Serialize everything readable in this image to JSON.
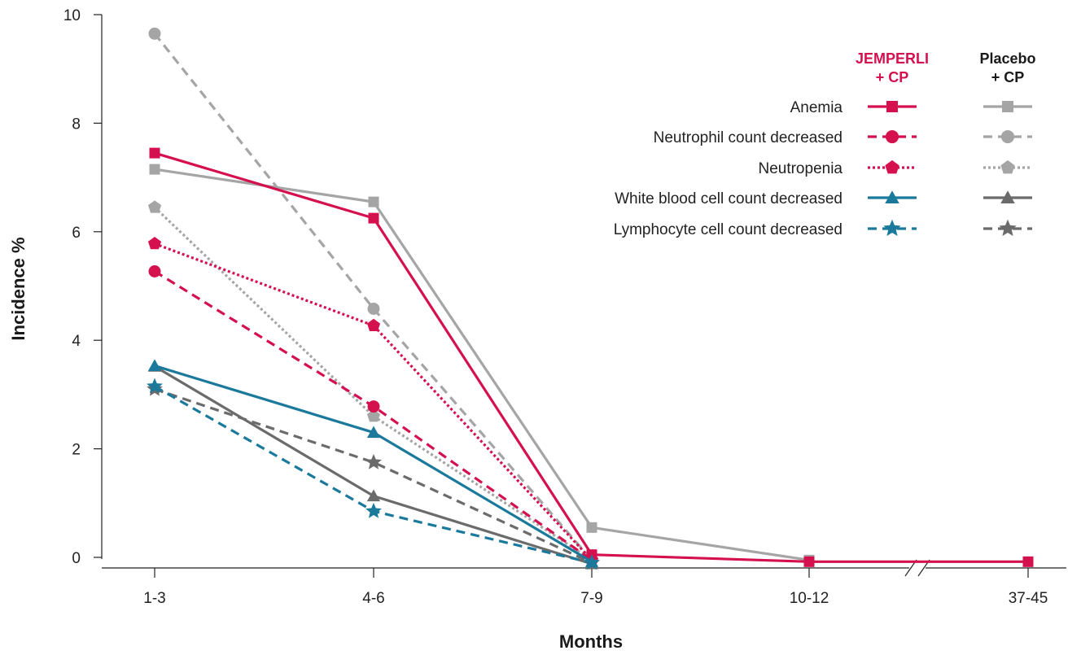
{
  "chart_data": {
    "type": "line",
    "xlabel": "Months",
    "ylabel": "Incidence %",
    "categories": [
      "1-3",
      "4-6",
      "7-9",
      "10-12",
      "37-45"
    ],
    "axis_break_between": [
      "10-12",
      "37-45"
    ],
    "ylim": [
      0,
      10
    ],
    "yticks": [
      "0",
      "2",
      "4",
      "6",
      "8",
      "10"
    ],
    "grid": false,
    "legend": {
      "placement": "top-right",
      "groups": [
        {
          "line1": "JEMPERLI",
          "line2": "+ CP",
          "color": "#d5104f"
        },
        {
          "line1": "Placebo",
          "line2": "+ CP",
          "color": "#1a1a1a"
        }
      ],
      "entries": [
        "Anemia",
        "Neutrophil count decreased",
        "Neutropenia",
        "White blood cell count decreased",
        "Lymphocyte cell count decreased"
      ]
    },
    "series": [
      {
        "name": "Anemia",
        "group": "JEMPERLI + CP",
        "color": "#d5104f",
        "dash": "solid",
        "marker": "square",
        "values": [
          7.45,
          6.25,
          0.05,
          -0.08,
          -0.08
        ]
      },
      {
        "name": "Neutrophil count decreased",
        "group": "JEMPERLI + CP",
        "color": "#d5104f",
        "dash": "dashed",
        "marker": "circle",
        "values": [
          5.27,
          2.78,
          -0.05,
          null,
          null
        ]
      },
      {
        "name": "Neutropenia",
        "group": "JEMPERLI + CP",
        "color": "#d5104f",
        "dash": "dotted",
        "marker": "pentagon",
        "values": [
          5.78,
          4.27,
          -0.05,
          null,
          null
        ]
      },
      {
        "name": "White blood cell count decreased",
        "group": "JEMPERLI + CP",
        "color": "#1b7a9c",
        "dash": "solid",
        "marker": "triangle",
        "values": [
          3.53,
          2.3,
          -0.08,
          null,
          null
        ]
      },
      {
        "name": "Lymphocyte cell count decreased",
        "group": "JEMPERLI + CP",
        "color": "#1b7a9c",
        "dash": "dashed",
        "marker": "star",
        "values": [
          3.15,
          0.85,
          -0.1,
          null,
          null
        ]
      },
      {
        "name": "Anemia",
        "group": "Placebo + CP",
        "color": "#a5a5a5",
        "dash": "solid",
        "marker": "square",
        "values": [
          7.15,
          6.55,
          0.55,
          -0.05,
          null
        ]
      },
      {
        "name": "Neutrophil count decreased",
        "group": "Placebo + CP",
        "color": "#a5a5a5",
        "dash": "dashed",
        "marker": "circle",
        "values": [
          9.65,
          4.58,
          -0.05,
          null,
          null
        ]
      },
      {
        "name": "Neutropenia",
        "group": "Placebo + CP",
        "color": "#a5a5a5",
        "dash": "dotted",
        "marker": "pentagon",
        "values": [
          6.45,
          2.6,
          -0.05,
          null,
          null
        ]
      },
      {
        "name": "White blood cell count decreased",
        "group": "Placebo + CP",
        "color": "#6b6b6b",
        "dash": "solid",
        "marker": "triangle",
        "values": [
          3.52,
          1.13,
          -0.12,
          null,
          null
        ]
      },
      {
        "name": "Lymphocyte cell count decreased",
        "group": "Placebo + CP",
        "color": "#6b6b6b",
        "dash": "dashed",
        "marker": "star",
        "values": [
          3.1,
          1.75,
          -0.1,
          null,
          null
        ]
      }
    ]
  }
}
